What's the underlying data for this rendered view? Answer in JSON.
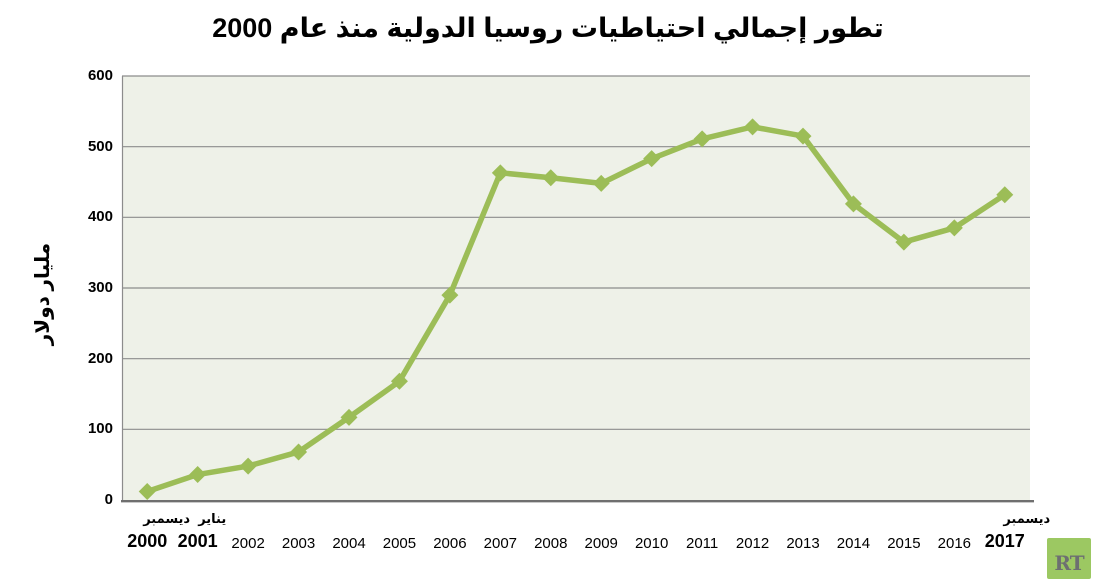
{
  "title": "تطور إجمالي احتياطيات روسيا الدولية منذ عام 2000",
  "chart_data": {
    "type": "line",
    "title": "تطور إجمالي احتياطيات روسيا الدولية منذ عام 2000",
    "xlabel": "",
    "ylabel": "مليار دولار",
    "ylim": [
      0,
      600
    ],
    "yticks": [
      0,
      100,
      200,
      300,
      400,
      500,
      600
    ],
    "grid": true,
    "legend": false,
    "categories": [
      {
        "year": "2000",
        "month": "يناير"
      },
      {
        "year": "2001",
        "month": "ديسمبر"
      },
      {
        "year": "2002",
        "month": ""
      },
      {
        "year": "2003",
        "month": ""
      },
      {
        "year": "2004",
        "month": ""
      },
      {
        "year": "2005",
        "month": ""
      },
      {
        "year": "2006",
        "month": ""
      },
      {
        "year": "2007",
        "month": ""
      },
      {
        "year": "2008",
        "month": ""
      },
      {
        "year": "2009",
        "month": ""
      },
      {
        "year": "2010",
        "month": ""
      },
      {
        "year": "2011",
        "month": ""
      },
      {
        "year": "2012",
        "month": ""
      },
      {
        "year": "2013",
        "month": ""
      },
      {
        "year": "2014",
        "month": ""
      },
      {
        "year": "2015",
        "month": ""
      },
      {
        "year": "2016",
        "month": ""
      },
      {
        "year": "2017",
        "month": "ديسمبر"
      }
    ],
    "series": [
      {
        "name": "إجمالي احتياطيات روسيا الدولية",
        "values": [
          12,
          36,
          48,
          68,
          117,
          168,
          290,
          463,
          456,
          448,
          483,
          511,
          528,
          515,
          419,
          365,
          385,
          432
        ]
      }
    ],
    "colors": {
      "line": "#9CBD57",
      "marker": "#9CBD57",
      "plot_background": "#EEF1E8",
      "gridline": "#8C8C8C",
      "axis_line": "#6F6F6F",
      "text": "#000000"
    }
  },
  "branding": {
    "logo_text": "RT",
    "logo_bg": "#9CC862",
    "logo_fg": "#6D6F71"
  }
}
